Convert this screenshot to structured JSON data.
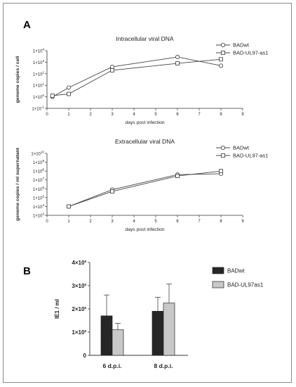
{
  "panels": {
    "a": "A",
    "b": "B"
  },
  "chart_data": [
    {
      "type": "line",
      "title": "Intracellular viral DNA",
      "xlabel": "days post infection",
      "ylabel": "genome copies / cell",
      "yscale": "log",
      "xlim": [
        0,
        9
      ],
      "ylim": [
        -1,
        4
      ],
      "x_ticks": [
        "0",
        "1",
        "2",
        "3",
        "4",
        "5",
        "6",
        "7",
        "8",
        "9"
      ],
      "y_ticks": [
        {
          "base": "1×10",
          "exp": "4",
          "v": 4
        },
        {
          "base": "1×10",
          "exp": "3",
          "v": 3
        },
        {
          "base": "1×10",
          "exp": "2",
          "v": 2
        },
        {
          "base": "1×10",
          "exp": "1",
          "v": 1
        },
        {
          "base": "1×10",
          "exp": "0",
          "v": 0
        },
        {
          "base": "1×10",
          "exp": "-1",
          "v": -1
        }
      ],
      "legend_position": "top-right",
      "series": [
        {
          "name": "BADwt",
          "marker": "circle",
          "x": [
            0.25,
            1,
            3,
            6,
            8
          ],
          "log10_y": [
            0.0,
            0.8,
            2.6,
            3.45,
            2.7
          ]
        },
        {
          "name": "BAD-UL97-as1",
          "marker": "square",
          "x": [
            0.25,
            1,
            3,
            6,
            8
          ],
          "log10_y": [
            0.1,
            0.25,
            2.3,
            2.9,
            3.25
          ]
        }
      ]
    },
    {
      "type": "line",
      "title": "Extracellular viral DNA",
      "xlabel": "days post infection",
      "ylabel": "genome copies / ml supernatant",
      "yscale": "log",
      "xlim": [
        0,
        9
      ],
      "ylim": [
        3,
        10
      ],
      "x_ticks": [
        "0",
        "1",
        "2",
        "3",
        "4",
        "5",
        "6",
        "7",
        "8",
        "9"
      ],
      "y_ticks": [
        {
          "base": "1×10",
          "exp": "10",
          "v": 10
        },
        {
          "base": "1×10",
          "exp": "9",
          "v": 9
        },
        {
          "base": "1×10",
          "exp": "8",
          "v": 8
        },
        {
          "base": "1×10",
          "exp": "7",
          "v": 7
        },
        {
          "base": "1×10",
          "exp": "6",
          "v": 6
        },
        {
          "base": "1×10",
          "exp": "5",
          "v": 5
        },
        {
          "base": "1×10",
          "exp": "4",
          "v": 4
        },
        {
          "base": "1×10",
          "exp": "3",
          "v": 3
        }
      ],
      "legend_position": "top-right",
      "series": [
        {
          "name": "BADwt",
          "marker": "circle",
          "x": [
            1,
            3,
            6,
            8
          ],
          "log10_y": [
            4.0,
            5.9,
            7.6,
            7.7
          ]
        },
        {
          "name": "BAD-UL97-as1",
          "marker": "square",
          "x": [
            1,
            3,
            6,
            8
          ],
          "log10_y": [
            4.0,
            5.7,
            7.45,
            8.0
          ]
        }
      ]
    },
    {
      "type": "bar",
      "ylabel": "IE1 / ml",
      "categories": [
        "6 d.p.i.",
        "8 d.p.i."
      ],
      "ylim": [
        0,
        4000000
      ],
      "y_ticks": [
        {
          "base": "0",
          "exp": "",
          "v": 0
        },
        {
          "base": "1×10",
          "exp": "6",
          "v": 1000000
        },
        {
          "base": "2×10",
          "exp": "6",
          "v": 2000000
        },
        {
          "base": "3×10",
          "exp": "6",
          "v": 3000000
        },
        {
          "base": "4×10",
          "exp": "6",
          "v": 4000000
        }
      ],
      "legend_position": "top-right",
      "series": [
        {
          "name": "BADwt",
          "color": "#262626",
          "values": [
            1700000,
            1900000
          ],
          "error": [
            900000,
            600000
          ]
        },
        {
          "name": "BAD-UL97as1",
          "color": "#c8c8c8",
          "values": [
            1100000,
            2250000
          ],
          "error": [
            280000,
            820000
          ]
        }
      ]
    }
  ]
}
